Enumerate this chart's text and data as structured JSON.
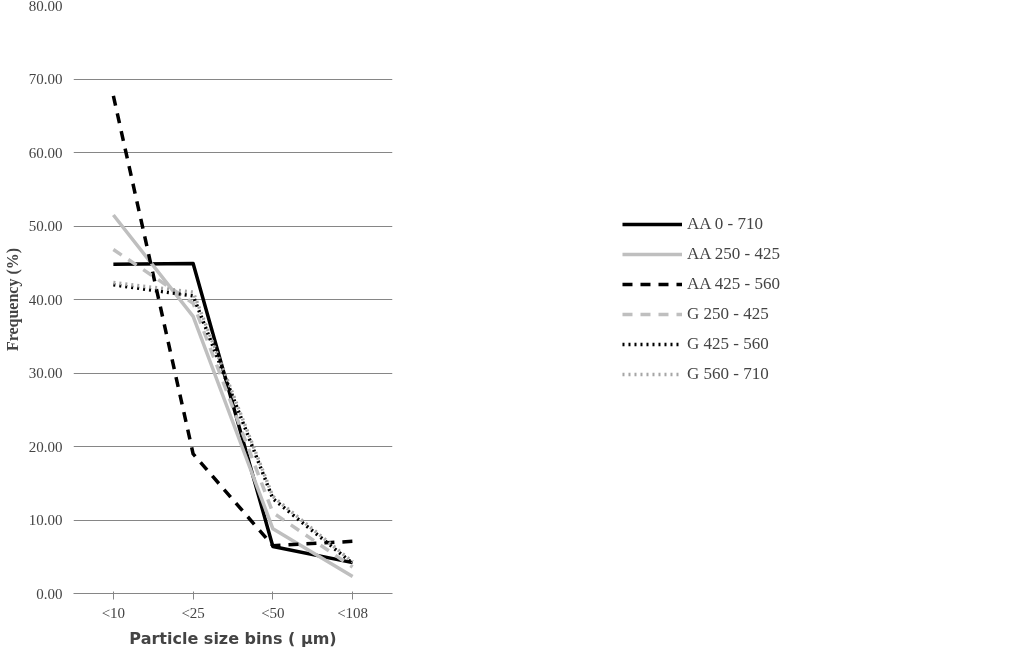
{
  "chart_data": {
    "type": "line",
    "xlabel": "Particle size bins ( µm)",
    "ylabel": "Frequency (%)",
    "categories": [
      "<10",
      "<25",
      "<50",
      "<108"
    ],
    "ylim": [
      0,
      80
    ],
    "yticks": [
      {
        "value": 0,
        "label": "0.00"
      },
      {
        "value": 10,
        "label": "10.00"
      },
      {
        "value": 20,
        "label": "20.00"
      },
      {
        "value": 30,
        "label": "30.00"
      },
      {
        "value": 40,
        "label": "40.00"
      },
      {
        "value": 50,
        "label": "50.00"
      },
      {
        "value": 60,
        "label": "60.00"
      },
      {
        "value": 70,
        "label": "70.00"
      },
      {
        "value": 80,
        "label": "80.00"
      }
    ],
    "grid": "y",
    "legend": "right",
    "marker": "none",
    "series": [
      {
        "name": "AA 0 - 710",
        "color": "#000000",
        "line_style": "solid",
        "values": [
          44.8,
          44.9,
          6.4,
          4.2
        ]
      },
      {
        "name": "AA 250 - 425",
        "color": "#bfbfbf",
        "line_style": "solid",
        "values": [
          51.5,
          37.7,
          8.8,
          2.3
        ]
      },
      {
        "name": "AA 425 - 560",
        "color": "#000000",
        "line_style": "dashed",
        "values": [
          67.7,
          19.0,
          6.5,
          7.1
        ]
      },
      {
        "name": "G 250 - 425",
        "color": "#bfbfbf",
        "line_style": "dashed",
        "values": [
          46.8,
          39.5,
          11.0,
          3.6
        ]
      },
      {
        "name": "G 425 - 560",
        "color": "#000000",
        "line_style": "dotted",
        "values": [
          42.0,
          40.5,
          12.9,
          4.1
        ]
      },
      {
        "name": "G 560 - 710",
        "color": "#a6a6a6",
        "line_style": "dotted",
        "values": [
          42.3,
          41.0,
          13.2,
          4.3
        ]
      }
    ]
  }
}
